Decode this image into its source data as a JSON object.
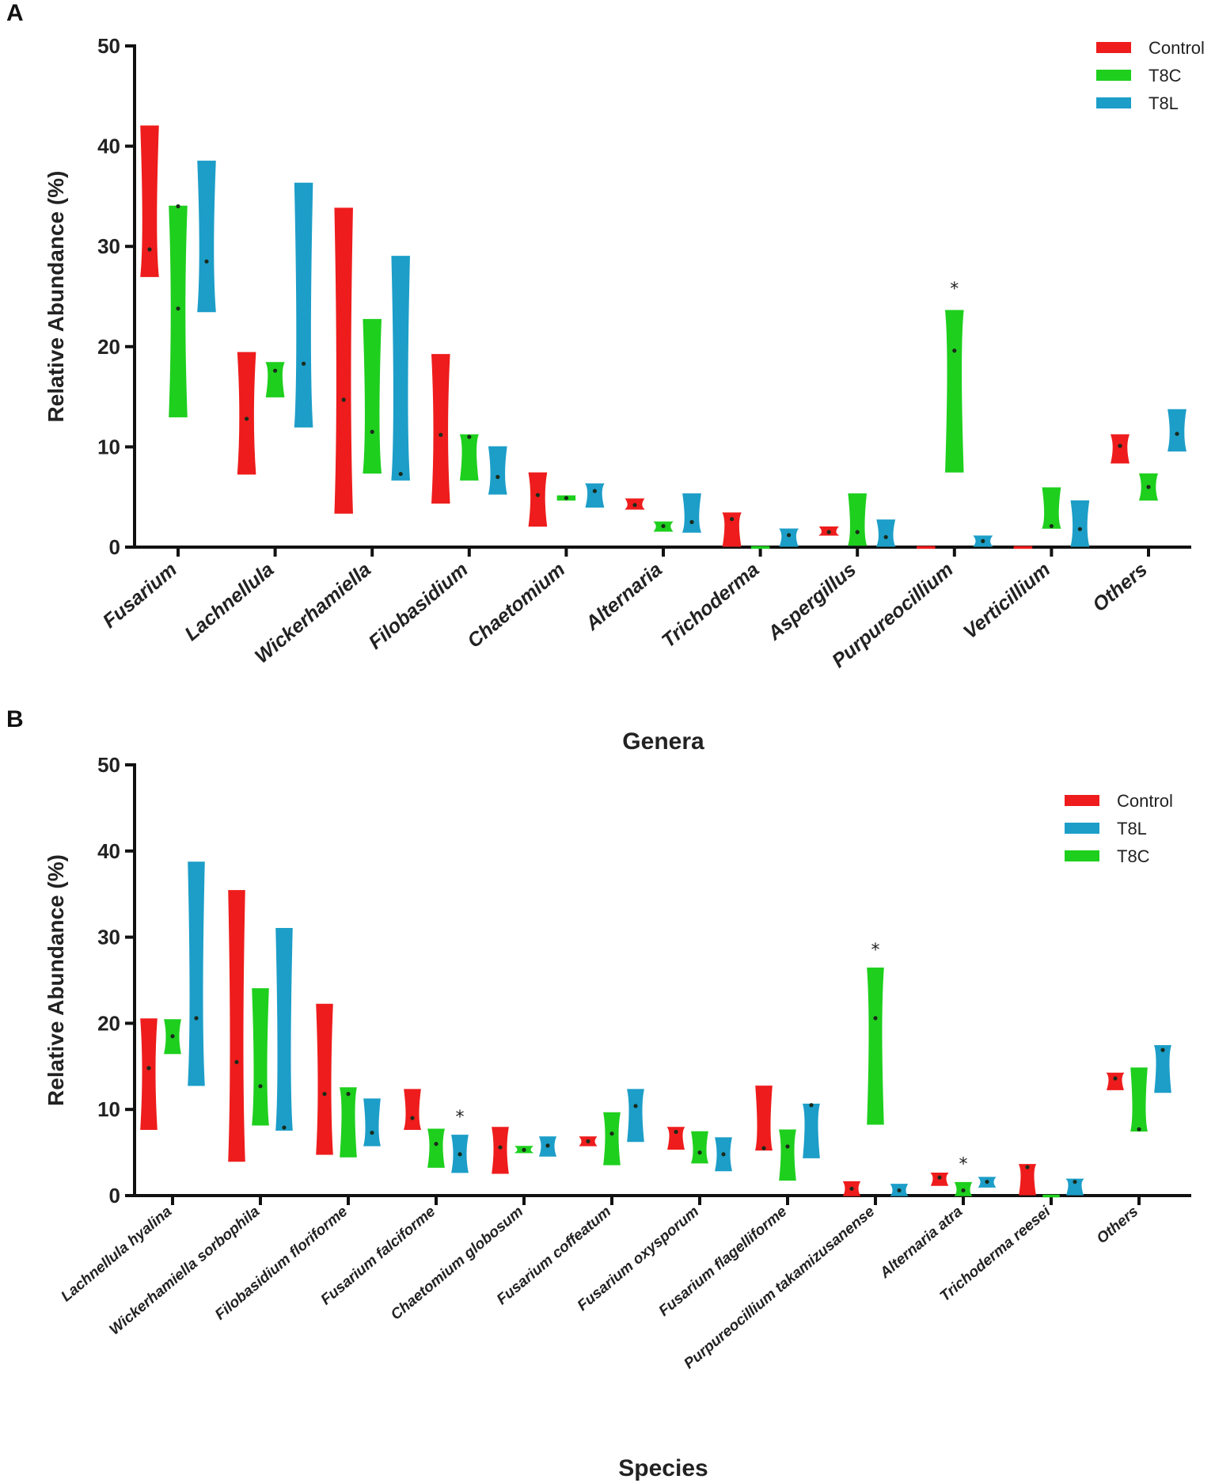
{
  "colors": {
    "Control": "#ee1c1c",
    "T8C": "#1ecf1e",
    "T8L": "#1c9ec8",
    "axis": "#111111"
  },
  "chart_data": [
    {
      "panel": "A",
      "type": "violin",
      "ylabel": "Relative Abundance (%)",
      "xlabel": "Genera",
      "ylim": [
        0,
        50
      ],
      "yticks": [
        "0",
        "10",
        "20",
        "30",
        "40",
        "50"
      ],
      "legend": [
        "Control",
        "T8C",
        "T8L"
      ],
      "series_order": [
        "Control",
        "T8C",
        "T8L"
      ],
      "categories": [
        {
          "name": "Fusarium",
          "groups": {
            "Control": {
              "min": 27,
              "max": 42,
              "points": [
                29.7
              ]
            },
            "T8C": {
              "min": 13,
              "max": 34,
              "points": [
                23.8,
                34
              ]
            },
            "T8L": {
              "min": 23.5,
              "max": 38.5,
              "points": [
                28.5
              ]
            }
          }
        },
        {
          "name": "Lachnellula",
          "groups": {
            "Control": {
              "min": 7.3,
              "max": 19.4,
              "points": [
                12.8
              ]
            },
            "T8C": {
              "min": 15,
              "max": 18.4,
              "points": [
                17.6
              ]
            },
            "T8L": {
              "min": 12,
              "max": 36.3,
              "points": [
                18.3
              ]
            }
          }
        },
        {
          "name": "Wickerhamiella",
          "groups": {
            "Control": {
              "min": 3.4,
              "max": 33.8,
              "points": [
                14.7
              ]
            },
            "T8C": {
              "min": 7.4,
              "max": 22.7,
              "points": [
                11.5
              ]
            },
            "T8L": {
              "min": 6.7,
              "max": 29,
              "points": [
                7.3
              ]
            }
          }
        },
        {
          "name": "Filobasidium",
          "groups": {
            "Control": {
              "min": 4.4,
              "max": 19.2,
              "points": [
                11.2
              ]
            },
            "T8C": {
              "min": 6.7,
              "max": 11.2,
              "points": [
                11
              ]
            },
            "T8L": {
              "min": 5.3,
              "max": 10,
              "points": [
                7
              ]
            }
          }
        },
        {
          "name": "Chaetomium",
          "groups": {
            "Control": {
              "min": 2.1,
              "max": 7.4,
              "points": [
                5.2
              ]
            },
            "T8C": {
              "min": 4.7,
              "max": 5.1,
              "points": [
                4.9
              ]
            },
            "T8L": {
              "min": 4,
              "max": 6.3,
              "points": [
                5.6
              ]
            }
          }
        },
        {
          "name": "Alternaria",
          "groups": {
            "Control": {
              "min": 3.8,
              "max": 4.8,
              "points": [
                4.2
              ]
            },
            "T8C": {
              "min": 1.6,
              "max": 2.5,
              "points": [
                2.1
              ]
            },
            "T8L": {
              "min": 1.5,
              "max": 5.3,
              "points": [
                2.5
              ]
            }
          }
        },
        {
          "name": "Trichoderma",
          "groups": {
            "Control": {
              "min": 0.1,
              "max": 3.4,
              "points": [
                2.8
              ]
            },
            "T8C": {
              "min": 0,
              "max": 0.05,
              "points": []
            },
            "T8L": {
              "min": 0.1,
              "max": 1.8,
              "points": [
                1.2
              ]
            }
          }
        },
        {
          "name": "Aspergillus",
          "groups": {
            "Control": {
              "min": 1.2,
              "max": 2,
              "points": [
                1.5
              ]
            },
            "T8C": {
              "min": 0.2,
              "max": 5.3,
              "points": [
                1.5
              ]
            },
            "T8L": {
              "min": 0.1,
              "max": 2.7,
              "points": [
                1
              ]
            }
          }
        },
        {
          "name": "Purpureocillium",
          "star": "*",
          "groups": {
            "Control": {
              "min": 0,
              "max": 0.05,
              "points": []
            },
            "T8C": {
              "min": 7.5,
              "max": 23.6,
              "points": [
                19.6
              ]
            },
            "T8L": {
              "min": 0.1,
              "max": 1.1,
              "points": [
                0.6
              ]
            }
          }
        },
        {
          "name": "Verticillium",
          "groups": {
            "Control": {
              "min": 0,
              "max": 0.05,
              "points": []
            },
            "T8C": {
              "min": 1.9,
              "max": 5.9,
              "points": [
                2.1
              ]
            },
            "T8L": {
              "min": 0.1,
              "max": 4.6,
              "points": [
                1.8
              ]
            }
          }
        },
        {
          "name": "Others",
          "groups": {
            "Control": {
              "min": 8.4,
              "max": 11.2,
              "points": [
                10.1
              ]
            },
            "T8C": {
              "min": 4.7,
              "max": 7.3,
              "points": [
                6
              ]
            },
            "T8L": {
              "min": 9.6,
              "max": 13.7,
              "points": [
                11.3
              ]
            }
          }
        }
      ]
    },
    {
      "panel": "B",
      "type": "violin",
      "ylabel": "Relative Abundance (%)",
      "xlabel": "Species",
      "ylim": [
        0,
        50
      ],
      "yticks": [
        "0",
        "10",
        "20",
        "30",
        "40",
        "50"
      ],
      "legend": [
        "Control",
        "T8L",
        "T8C"
      ],
      "series_order": [
        "Control",
        "T8C",
        "T8L"
      ],
      "categories": [
        {
          "name": "Lachnellula hyalina",
          "groups": {
            "Control": {
              "min": 7.7,
              "max": 20.5,
              "points": [
                14.8
              ]
            },
            "T8C": {
              "min": 16.5,
              "max": 20.4,
              "points": [
                18.5
              ]
            },
            "T8L": {
              "min": 12.8,
              "max": 38.7,
              "points": [
                20.6
              ]
            }
          }
        },
        {
          "name": "Wickerhamiella sorbophila",
          "groups": {
            "Control": {
              "min": 4,
              "max": 35.4,
              "points": [
                15.5
              ]
            },
            "T8C": {
              "min": 8.2,
              "max": 24,
              "points": [
                12.7
              ]
            },
            "T8L": {
              "min": 7.6,
              "max": 31,
              "points": [
                7.9
              ]
            }
          }
        },
        {
          "name": "Filobasidium floriforme",
          "groups": {
            "Control": {
              "min": 4.8,
              "max": 22.2,
              "points": [
                11.8
              ]
            },
            "T8C": {
              "min": 4.5,
              "max": 12.5,
              "points": [
                11.8
              ]
            },
            "T8L": {
              "min": 5.8,
              "max": 11.2,
              "points": [
                7.3
              ]
            }
          }
        },
        {
          "name": "Fusarium falciforme",
          "star": "*",
          "star_group": "T8L",
          "groups": {
            "Control": {
              "min": 7.7,
              "max": 12.3,
              "points": [
                9
              ]
            },
            "T8C": {
              "min": 3.3,
              "max": 7.7,
              "points": [
                6
              ]
            },
            "T8L": {
              "min": 2.7,
              "max": 7,
              "points": [
                4.8
              ]
            }
          }
        },
        {
          "name": "Chaetomium globosum",
          "groups": {
            "Control": {
              "min": 2.6,
              "max": 7.9,
              "points": [
                5.6
              ]
            },
            "T8C": {
              "min": 5,
              "max": 5.7,
              "points": [
                5.3
              ]
            },
            "T8L": {
              "min": 4.6,
              "max": 6.8,
              "points": [
                5.8
              ]
            }
          }
        },
        {
          "name": "Fusarium coffeatum",
          "groups": {
            "Control": {
              "min": 5.8,
              "max": 6.8,
              "points": [
                6.3
              ]
            },
            "T8C": {
              "min": 3.6,
              "max": 9.6,
              "points": [
                7.2
              ]
            },
            "T8L": {
              "min": 6.3,
              "max": 12.3,
              "points": [
                10.4
              ]
            }
          }
        },
        {
          "name": "Fusarium oxysporum",
          "groups": {
            "Control": {
              "min": 5.4,
              "max": 7.9,
              "points": [
                7.4
              ]
            },
            "T8C": {
              "min": 3.8,
              "max": 7.4,
              "points": [
                5
              ]
            },
            "T8L": {
              "min": 2.9,
              "max": 6.7,
              "points": [
                4.8
              ]
            }
          }
        },
        {
          "name": "Fusarium flagelliforme",
          "groups": {
            "Control": {
              "min": 5.3,
              "max": 12.7,
              "points": [
                5.5
              ]
            },
            "T8C": {
              "min": 1.8,
              "max": 7.6,
              "points": [
                5.7
              ]
            },
            "T8L": {
              "min": 4.4,
              "max": 10.6,
              "points": [
                10.5
              ]
            }
          }
        },
        {
          "name": "Purpureocillium takamizusanense",
          "star": "*",
          "star_group": "T8C",
          "groups": {
            "Control": {
              "min": 0,
              "max": 1.6,
              "points": [
                0.8
              ]
            },
            "T8C": {
              "min": 8.3,
              "max": 26.4,
              "points": [
                20.6
              ]
            },
            "T8L": {
              "min": 0,
              "max": 1.3,
              "points": [
                0.6
              ]
            }
          }
        },
        {
          "name": "Alternaria atra",
          "star": "*",
          "star_group": "T8C",
          "groups": {
            "Control": {
              "min": 1.2,
              "max": 2.6,
              "points": [
                2.1
              ]
            },
            "T8C": {
              "min": 0,
              "max": 1.5,
              "points": [
                0.6
              ]
            },
            "T8L": {
              "min": 1,
              "max": 2.1,
              "points": [
                1.6
              ]
            }
          }
        },
        {
          "name": "Trichoderma reesei",
          "groups": {
            "Control": {
              "min": 0.1,
              "max": 3.6,
              "points": [
                3.3
              ]
            },
            "T8C": {
              "min": 0,
              "max": 0.05,
              "points": []
            },
            "T8L": {
              "min": 0.1,
              "max": 1.9,
              "points": [
                1.6
              ]
            }
          }
        },
        {
          "name": "Others",
          "groups": {
            "Control": {
              "min": 12.3,
              "max": 14.2,
              "points": [
                13.6
              ]
            },
            "T8C": {
              "min": 7.5,
              "max": 14.8,
              "points": [
                7.7
              ]
            },
            "T8L": {
              "min": 12,
              "max": 17.4,
              "points": [
                16.9
              ]
            }
          }
        }
      ]
    }
  ]
}
